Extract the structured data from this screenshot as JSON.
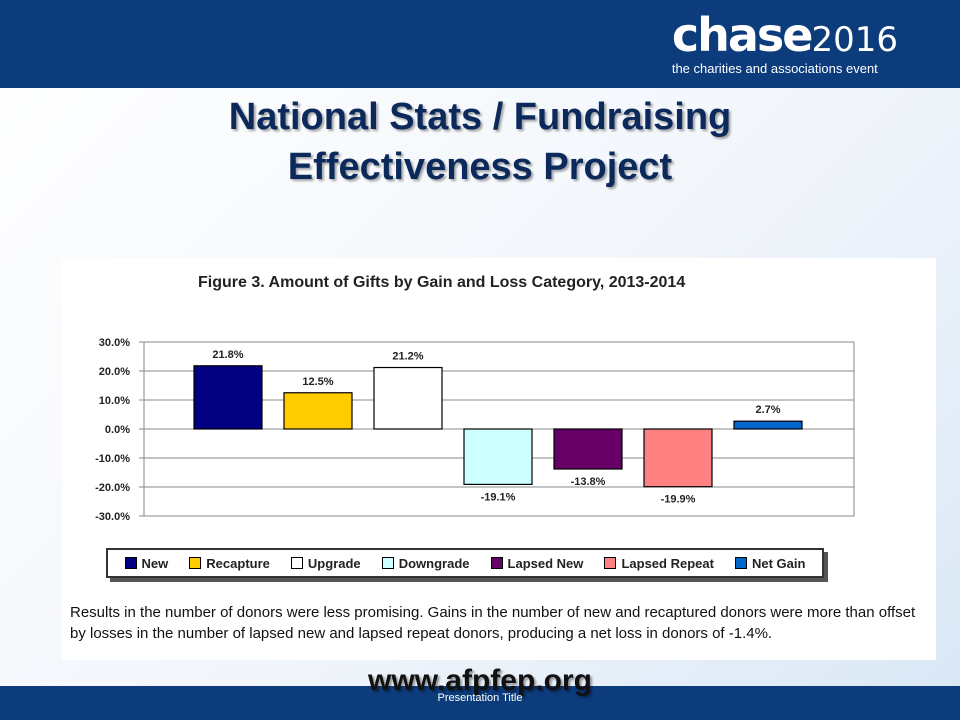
{
  "header": {
    "logo_word": "chase",
    "logo_year": "2016",
    "logo_tagline": "the charities and associations event"
  },
  "slide": {
    "title_line1": "National Stats / Fundraising",
    "title_line2": "Effectiveness Project",
    "figure_title": "Figure 3. Amount of Gifts by Gain and Loss Category, 2013-2014",
    "note": "Results in the number of donors were less promising. Gains in the number of new and recaptured donors were more than offset by losses in the number of lapsed new and lapsed repeat donors, producing a net loss in donors of -1.4%.",
    "url": "www.afpfep.org",
    "footer": "Presentation Title"
  },
  "colors": {
    "band": "#0d3c7d",
    "title": "#0b2a5b"
  },
  "chart_data": {
    "type": "bar",
    "title": "Figure 3. Amount of Gifts by Gain and Loss Category, 2013-2014",
    "categories": [
      "New",
      "Recapture",
      "Upgrade",
      "Downgrade",
      "Lapsed New",
      "Lapsed Repeat",
      "Net Gain"
    ],
    "values": [
      21.8,
      12.5,
      21.2,
      -19.1,
      -13.8,
      -19.9,
      2.7
    ],
    "data_labels": [
      "21.8%",
      "12.5%",
      "21.2%",
      "-19.1%",
      "-13.8%",
      "-19.9%",
      "2.7%"
    ],
    "colors": [
      "#000080",
      "#ffcc00",
      "#ffffff",
      "#ccffff",
      "#660066",
      "#ff8080",
      "#0066cc"
    ],
    "ylim": [
      -30,
      30
    ],
    "y_ticks": [
      30,
      20,
      10,
      0,
      -10,
      -20,
      -30
    ],
    "y_tick_labels": [
      "30.0%",
      "20.0%",
      "10.0%",
      "0.0%",
      "-10.0%",
      "-20.0%",
      "-30.0%"
    ],
    "grid": true,
    "legend": "bottom",
    "xlabel": "",
    "ylabel": ""
  }
}
